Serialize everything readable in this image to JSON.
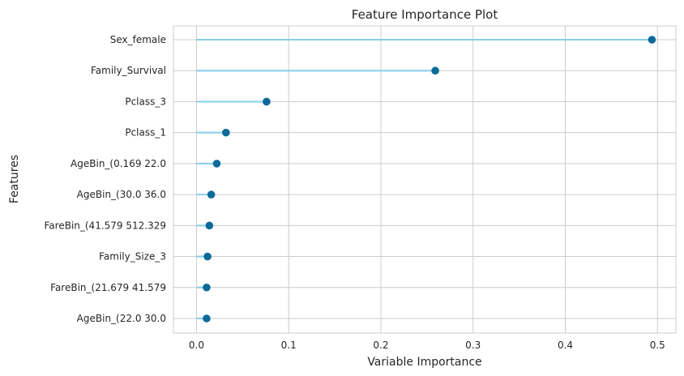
{
  "chart_data": {
    "type": "lollipop",
    "title": "Feature Importance Plot",
    "xlabel": "Variable Importance",
    "ylabel": "Features",
    "xlim": [
      -0.025,
      0.52
    ],
    "xticks": [
      0.0,
      0.1,
      0.2,
      0.3,
      0.4,
      0.5
    ],
    "xtick_labels": [
      "0.0",
      "0.1",
      "0.2",
      "0.3",
      "0.4",
      "0.5"
    ],
    "grid": true,
    "stem_color": "#87ceeb",
    "marker_color": "#0c6a9a",
    "features": [
      "Sex_female",
      "Family_Survival",
      "Pclass_3",
      "Pclass_1",
      "AgeBin_(0.169 22.0",
      "AgeBin_(30.0 36.0",
      "FareBin_(41.579 512.329",
      "Family_Size_3",
      "FareBin_(21.679 41.579",
      "AgeBin_(22.0 30.0"
    ],
    "values": [
      0.494,
      0.259,
      0.076,
      0.032,
      0.022,
      0.016,
      0.014,
      0.012,
      0.011,
      0.011
    ]
  }
}
